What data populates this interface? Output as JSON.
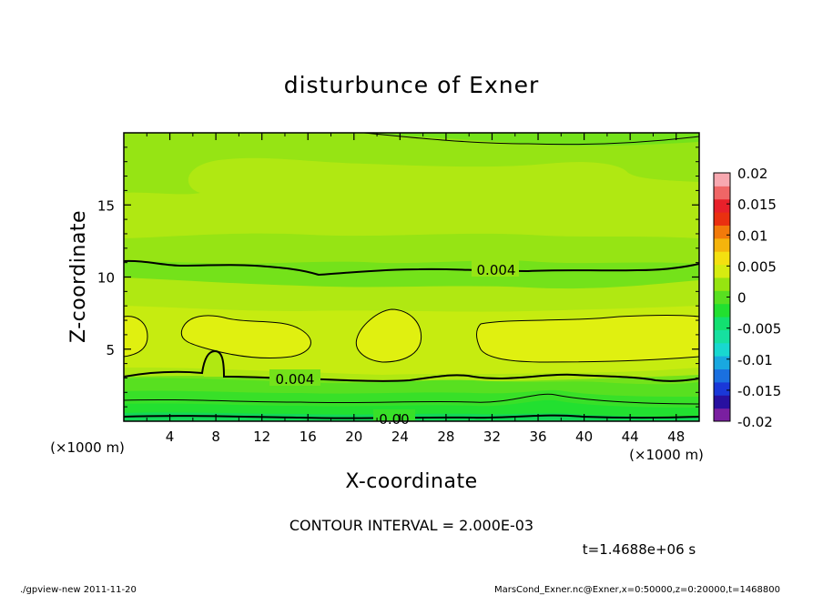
{
  "chart_data": {
    "type": "heatmap",
    "title": "disturbunce of Exner",
    "xlabel": "X-coordinate",
    "ylabel": "Z-coordinate",
    "x_unit": "(×1000 m)",
    "y_unit": "(×1000 m)",
    "xlim": [
      0,
      50
    ],
    "ylim": [
      0,
      20
    ],
    "x_ticks": [
      "4",
      "8",
      "12",
      "16",
      "20",
      "24",
      "28",
      "32",
      "36",
      "40",
      "44",
      "48"
    ],
    "y_ticks": [
      "5",
      "10",
      "15"
    ],
    "contour_labels": [
      "0.004",
      "0.004",
      "0.00"
    ],
    "contour_interval_text": "CONTOUR INTERVAL = 2.000E-03",
    "time_text": "t=1.4688e+06 s",
    "colorbar": {
      "ticks": [
        "0.02",
        "0.015",
        "0.01",
        "0.005",
        "0",
        "-0.005",
        "-0.01",
        "-0.015",
        "-0.02"
      ],
      "range": [
        -0.02,
        0.02
      ],
      "colors": [
        "#7a1fa0",
        "#2810a0",
        "#1a38d8",
        "#1a70e0",
        "#19a8e0",
        "#18d8d0",
        "#16e0a0",
        "#12e070",
        "#22e030",
        "#58e020",
        "#96e410",
        "#d6ec10",
        "#f4e010",
        "#f5b40c",
        "#f27a0a",
        "#ea3010",
        "#e8202a",
        "#f06666",
        "#f8a8b0"
      ]
    },
    "field_levels": [
      {
        "level": "0",
        "color": "#38e028"
      },
      {
        "level": "0.001",
        "color": "#58e020"
      },
      {
        "level": "0.002",
        "color": "#74e21a"
      },
      {
        "level": "0.003",
        "color": "#96e414"
      },
      {
        "level": "0.004",
        "color": "#b0e812"
      },
      {
        "level": "0.005",
        "color": "#c6ec10"
      },
      {
        "level": "0.006",
        "color": "#e0f010"
      }
    ]
  },
  "footer": {
    "left": "./gpview-new   2011-11-20",
    "right": "MarsCond_Exner.nc@Exner,x=0:50000,z=0:20000,t=1468800"
  }
}
